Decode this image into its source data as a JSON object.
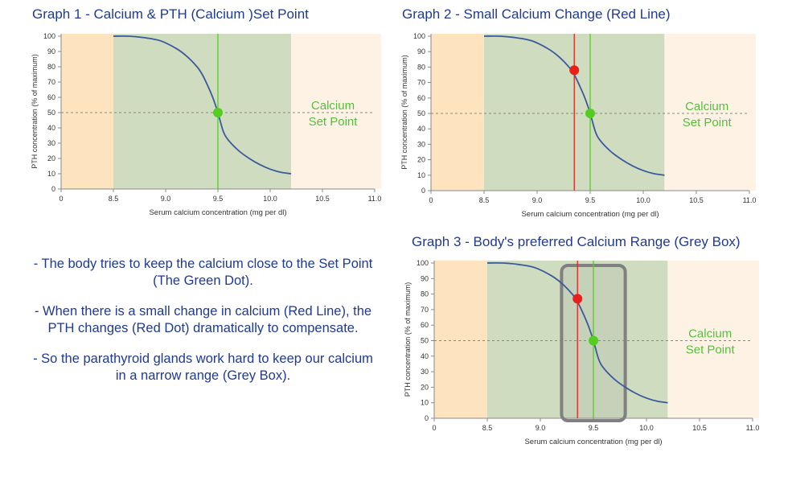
{
  "charts": [
    {
      "title": "Graph 1 - Calcium & PTH (Calcium )Set Point",
      "chart_data": {
        "type": "line",
        "title": "Graph 1 - Calcium & PTH (Calcium )Set Point",
        "xlabel": "Serum calcium concentration (mg per dl)",
        "ylabel": "PTH concentration (% of maximum)",
        "xlim": [
          8.0,
          11.0
        ],
        "ylim": [
          0,
          100
        ],
        "x_ticks": [
          "0",
          "8.5",
          "9.0",
          "9.5",
          "10.0",
          "10.5",
          "11.0"
        ],
        "y_ticks": [
          "0",
          "10",
          "20",
          "30",
          "40",
          "50",
          "60",
          "70",
          "80",
          "90",
          "100"
        ],
        "series": [
          {
            "x": [
              8.5,
              8.65,
              8.8,
              8.95,
              9.1,
              9.2,
              9.3,
              9.35,
              9.4,
              9.45,
              9.5,
              9.55,
              9.6,
              9.7,
              9.8,
              9.9,
              10.0,
              10.1,
              10.2
            ],
            "y": [
              100,
              100,
              99,
              97,
              92,
              87,
              80,
              75,
              68,
              60,
              50,
              38,
              32,
              25,
              20,
              16,
              13,
              11,
              10
            ]
          }
        ],
        "set_point": {
          "x": 9.5,
          "y": 50,
          "color": "#55cc22"
        },
        "reference_line_y": 50,
        "shaded_range": [
          8.5,
          10.2
        ],
        "annotation": [
          "Calcium",
          "Set Point"
        ],
        "grid": false
      }
    },
    {
      "title": "Graph 2 - Small Calcium Change (Red Line)",
      "chart_data": {
        "type": "line",
        "title": "Graph 2 - Small Calcium Change (Red Line)",
        "xlabel": "Serum calcium concentration (mg per dl)",
        "ylabel": "PTH concentration (% of maximum)",
        "xlim": [
          8.0,
          11.0
        ],
        "ylim": [
          0,
          100
        ],
        "x_ticks": [
          "0",
          "8.5",
          "9.0",
          "9.5",
          "10.0",
          "10.5",
          "11.0"
        ],
        "y_ticks": [
          "0",
          "10",
          "20",
          "30",
          "40",
          "50",
          "60",
          "70",
          "80",
          "90",
          "100"
        ],
        "series": [
          {
            "x": [
              8.5,
              8.65,
              8.8,
              8.95,
              9.1,
              9.2,
              9.3,
              9.35,
              9.4,
              9.45,
              9.5,
              9.55,
              9.6,
              9.7,
              9.8,
              9.9,
              10.0,
              10.1,
              10.2
            ],
            "y": [
              100,
              100,
              99,
              97,
              92,
              87,
              80,
              75,
              68,
              60,
              50,
              38,
              32,
              25,
              20,
              16,
              13,
              11,
              10
            ]
          }
        ],
        "set_point": {
          "x": 9.5,
          "y": 50,
          "color": "#55cc22"
        },
        "change_point": {
          "x": 9.35,
          "y": 78,
          "color": "#e8201a"
        },
        "reference_line_y": 50,
        "shaded_range": [
          8.5,
          10.2
        ],
        "annotation": [
          "Calcium",
          "Set Point"
        ],
        "grid": false
      }
    },
    {
      "title": "Graph 3 - Body's preferred Calcium Range (Grey Box)",
      "chart_data": {
        "type": "line",
        "title": "Graph 3 - Body's preferred Calcium Range (Grey Box)",
        "xlabel": "Serum calcium concentration (mg per dl)",
        "ylabel": "PTH concentration (% of maximum)",
        "xlim": [
          8.0,
          11.0
        ],
        "ylim": [
          0,
          100
        ],
        "x_ticks": [
          "0",
          "8.5",
          "9.0",
          "9.5",
          "10.0",
          "10.5",
          "11.0"
        ],
        "y_ticks": [
          "0",
          "10",
          "20",
          "30",
          "40",
          "50",
          "60",
          "70",
          "80",
          "90",
          "100"
        ],
        "series": [
          {
            "x": [
              8.5,
              8.65,
              8.8,
              8.95,
              9.1,
              9.2,
              9.3,
              9.35,
              9.4,
              9.45,
              9.5,
              9.55,
              9.6,
              9.7,
              9.8,
              9.9,
              10.0,
              10.1,
              10.2
            ],
            "y": [
              100,
              100,
              99,
              97,
              92,
              87,
              80,
              75,
              68,
              60,
              50,
              38,
              32,
              25,
              20,
              16,
              13,
              11,
              10
            ]
          }
        ],
        "set_point": {
          "x": 9.5,
          "y": 50,
          "color": "#55cc22"
        },
        "change_point": {
          "x": 9.35,
          "y": 77,
          "color": "#e8201a"
        },
        "preferred_range": {
          "x": [
            9.2,
            9.8
          ],
          "y": [
            0,
            100
          ],
          "color": "#808080"
        },
        "reference_line_y": 50,
        "shaded_range": [
          8.5,
          10.2
        ],
        "annotation": [
          "Calcium",
          "Set Point"
        ],
        "grid": false
      }
    }
  ],
  "notes": [
    [
      "- The body tries to keep the calcium close to the Set Point",
      "(The Green Dot)."
    ],
    [
      "- When there is a small change in calcium (Red Line), the",
      "PTH changes (Red Dot) dramatically to compensate."
    ],
    [
      "- So the parathyroid glands work hard to keep our calcium",
      "in a narrow range (Grey Box)."
    ]
  ],
  "colors": {
    "title_text": "#1f3a93",
    "curve": "#3a5a9c",
    "set_point": "#55cc22",
    "change": "#e8201a",
    "range_box": "#808080",
    "normal_band": "#cfdcc0",
    "low_band": "#fde4bf",
    "high_band": "#fdf2e4",
    "annotation_text": "#55bb33"
  }
}
